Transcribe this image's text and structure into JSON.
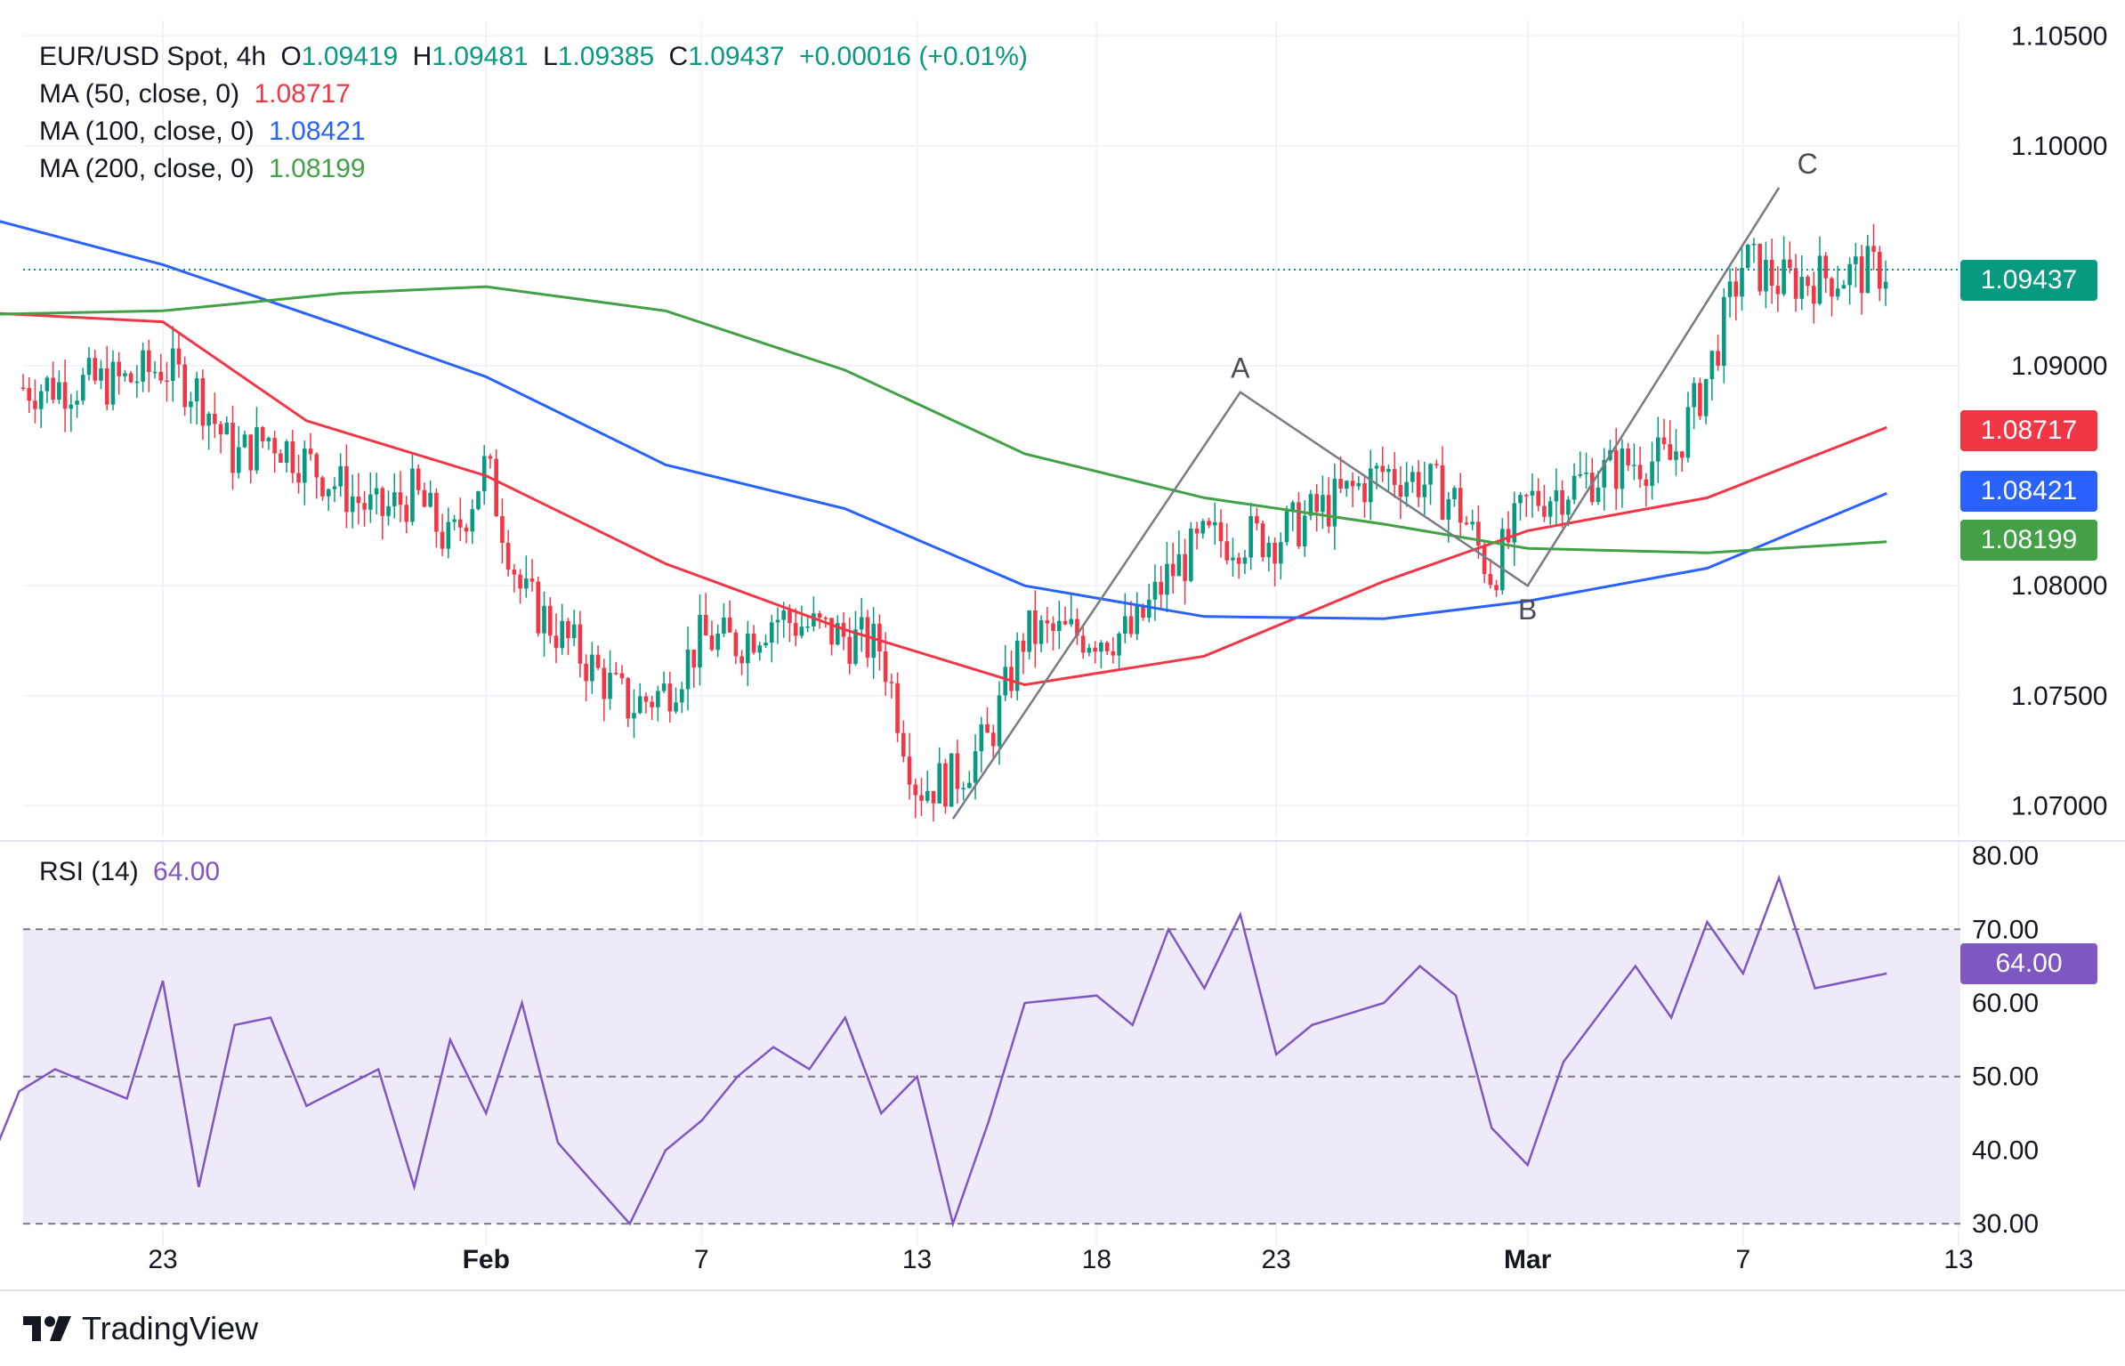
{
  "header": {
    "symbol": "EUR/USD Spot, 4h",
    "o_label": "O",
    "o_value": "1.09419",
    "h_label": "H",
    "h_value": "1.09481",
    "l_label": "L",
    "l_value": "1.09385",
    "c_label": "C",
    "c_value": "1.09437",
    "change": "+0.00016 (+0.01%)",
    "ma50_label": "MA (50, close, 0)",
    "ma50_value": "1.08717",
    "ma100_label": "MA (100, close, 0)",
    "ma100_value": "1.08421",
    "ma200_label": "MA (200, close, 0)",
    "ma200_value": "1.08199"
  },
  "rsi_header": {
    "label": "RSI (14)",
    "value": "64.00"
  },
  "badges": {
    "price": "1.09437",
    "ma50": "1.08717",
    "ma100": "1.08421",
    "ma200": "1.08199",
    "rsi": "64.00"
  },
  "brand": {
    "name": "TradingView"
  },
  "colors": {
    "up": "#089981",
    "down": "#f23645",
    "ma50": "#f23645",
    "ma100": "#2962ff",
    "ma200": "#43a047",
    "rsi": "#7e57c2",
    "rsi_band": "#efeafa",
    "pattern": "#787b86"
  },
  "chart_data": [
    {
      "type": "candlestick",
      "title": "EUR/USD Spot, 4h",
      "y_axis": {
        "range": [
          1.0686,
          1.1057
        ],
        "ticks": [
          "1.10500",
          "1.10000",
          "1.09000",
          "1.08000",
          "1.07500",
          "1.07000"
        ],
        "position": "right"
      },
      "x_axis": {
        "ticks": [
          "23",
          "Feb",
          "7",
          "13",
          "18",
          "23",
          "Mar",
          "7",
          "13"
        ],
        "tick_dates": [
          "2024-01-23",
          "2024-02-01",
          "2024-02-07",
          "2024-02-13",
          "2024-02-18",
          "2024-02-23",
          "2024-03-01",
          "2024-03-07",
          "2024-03-13"
        ]
      },
      "grid": true,
      "last_price": 1.09437,
      "ohlc_close_path": [
        [
          "2024-01-17",
          1.0882
        ],
        [
          "2024-01-18",
          1.0872
        ],
        [
          "2024-01-19",
          1.089
        ],
        [
          "2024-01-22",
          1.0893
        ],
        [
          "2024-01-23",
          1.09
        ],
        [
          "2024-01-24",
          1.0888
        ],
        [
          "2024-01-25",
          1.0858
        ],
        [
          "2024-01-26",
          1.0868
        ],
        [
          "2024-01-29",
          1.0832
        ],
        [
          "2024-01-30",
          1.0842
        ],
        [
          "2024-01-31",
          1.0818
        ],
        [
          "2024-02-01",
          1.0855
        ],
        [
          "2024-02-02",
          1.0796
        ],
        [
          "2024-02-05",
          1.0745
        ],
        [
          "2024-02-06",
          1.0752
        ],
        [
          "2024-02-07",
          1.0776
        ],
        [
          "2024-02-08",
          1.0774
        ],
        [
          "2024-02-09",
          1.0786
        ],
        [
          "2024-02-12",
          1.0772
        ],
        [
          "2024-02-13",
          1.0708
        ],
        [
          "2024-02-14",
          1.0712
        ],
        [
          "2024-02-15",
          1.073
        ],
        [
          "2024-02-16",
          1.0778
        ],
        [
          "2024-02-19",
          1.0778
        ],
        [
          "2024-02-20",
          1.0805
        ],
        [
          "2024-02-21",
          1.082
        ],
        [
          "2024-02-22",
          1.0822
        ],
        [
          "2024-02-23",
          1.0822
        ],
        [
          "2024-02-26",
          1.0852
        ],
        [
          "2024-02-27",
          1.0848
        ],
        [
          "2024-02-28",
          1.0838
        ],
        [
          "2024-02-29",
          1.0805
        ],
        [
          "2024-03-01",
          1.0838
        ],
        [
          "2024-03-04",
          1.0857
        ],
        [
          "2024-03-05",
          1.0857
        ],
        [
          "2024-03-06",
          1.0895
        ],
        [
          "2024-03-07",
          1.0948
        ],
        [
          "2024-03-08",
          1.0938
        ],
        [
          "2024-03-11",
          1.0944
        ]
      ],
      "series": [
        {
          "name": "MA (50, close, 0)",
          "last": 1.08717,
          "points": [
            [
              "2024-01-17",
              1.0925
            ],
            [
              "2024-01-23",
              1.092
            ],
            [
              "2024-01-27",
              1.0875
            ],
            [
              "2024-02-01",
              1.085
            ],
            [
              "2024-02-06",
              1.081
            ],
            [
              "2024-02-11",
              1.078
            ],
            [
              "2024-02-16",
              1.0755
            ],
            [
              "2024-02-21",
              1.0768
            ],
            [
              "2024-02-26",
              1.0802
            ],
            [
              "2024-03-01",
              1.0825
            ],
            [
              "2024-03-06",
              1.084
            ],
            [
              "2024-03-11",
              1.0872
            ]
          ]
        },
        {
          "name": "MA (100, close, 0)",
          "last": 1.08421,
          "points": [
            [
              "2024-01-17",
              1.0972
            ],
            [
              "2024-01-23",
              1.0946
            ],
            [
              "2024-01-28",
              1.0918
            ],
            [
              "2024-02-01",
              1.0895
            ],
            [
              "2024-02-06",
              1.0855
            ],
            [
              "2024-02-11",
              1.0835
            ],
            [
              "2024-02-16",
              1.08
            ],
            [
              "2024-02-21",
              1.0786
            ],
            [
              "2024-02-26",
              1.0785
            ],
            [
              "2024-03-01",
              1.0793
            ],
            [
              "2024-03-06",
              1.0808
            ],
            [
              "2024-03-11",
              1.0842
            ]
          ]
        },
        {
          "name": "MA (200, close, 0)",
          "last": 1.08199,
          "points": [
            [
              "2024-01-17",
              1.0923
            ],
            [
              "2024-01-23",
              1.0925
            ],
            [
              "2024-01-28",
              1.0933
            ],
            [
              "2024-02-01",
              1.0936
            ],
            [
              "2024-02-06",
              1.0925
            ],
            [
              "2024-02-11",
              1.0898
            ],
            [
              "2024-02-16",
              1.086
            ],
            [
              "2024-02-21",
              1.084
            ],
            [
              "2024-02-26",
              1.0828
            ],
            [
              "2024-03-01",
              1.0817
            ],
            [
              "2024-03-06",
              1.0815
            ],
            [
              "2024-03-11",
              1.082
            ]
          ]
        }
      ],
      "pattern": {
        "points": [
          {
            "label": "",
            "date": "2024-02-14",
            "price": 1.0694
          },
          {
            "label": "A",
            "date": "2024-02-22",
            "price": 1.0888
          },
          {
            "label": "B",
            "date": "2024-03-01",
            "price": 1.08
          },
          {
            "label": "C",
            "date": "2024-03-08",
            "price": 1.0981
          }
        ]
      }
    },
    {
      "type": "line",
      "title": "RSI (14)",
      "y_axis": {
        "range": [
          27,
          82
        ],
        "ticks": [
          "80.00",
          "70.00",
          "60.00",
          "50.00",
          "40.00",
          "30.00"
        ]
      },
      "levels": [
        70,
        50,
        30
      ],
      "band": [
        30,
        70
      ],
      "series": [
        {
          "name": "RSI (14)",
          "last": 64.0,
          "points": [
            [
              "2024-01-17",
              45
            ],
            [
              "2024-01-18",
              36
            ],
            [
              "2024-01-19",
              48
            ],
            [
              "2024-01-20",
              51
            ],
            [
              "2024-01-22",
              47
            ],
            [
              "2024-01-23",
              63
            ],
            [
              "2024-01-24",
              35
            ],
            [
              "2024-01-25",
              57
            ],
            [
              "2024-01-26",
              58
            ],
            [
              "2024-01-27",
              46
            ],
            [
              "2024-01-29",
              51
            ],
            [
              "2024-01-30",
              35
            ],
            [
              "2024-01-31",
              55
            ],
            [
              "2024-02-01",
              45
            ],
            [
              "2024-02-02",
              60
            ],
            [
              "2024-02-03",
              41
            ],
            [
              "2024-02-05",
              30
            ],
            [
              "2024-02-06",
              40
            ],
            [
              "2024-02-07",
              44
            ],
            [
              "2024-02-08",
              50
            ],
            [
              "2024-02-09",
              54
            ],
            [
              "2024-02-10",
              51
            ],
            [
              "2024-02-11",
              58
            ],
            [
              "2024-02-12",
              45
            ],
            [
              "2024-02-13",
              50
            ],
            [
              "2024-02-14",
              30
            ],
            [
              "2024-02-15",
              44
            ],
            [
              "2024-02-16",
              60
            ],
            [
              "2024-02-18",
              61
            ],
            [
              "2024-02-19",
              57
            ],
            [
              "2024-02-20",
              70
            ],
            [
              "2024-02-21",
              62
            ],
            [
              "2024-02-22",
              72
            ],
            [
              "2024-02-23",
              53
            ],
            [
              "2024-02-24",
              57
            ],
            [
              "2024-02-26",
              60
            ],
            [
              "2024-02-27",
              65
            ],
            [
              "2024-02-28",
              61
            ],
            [
              "2024-02-29",
              43
            ],
            [
              "2024-03-01",
              38
            ],
            [
              "2024-03-02",
              52
            ],
            [
              "2024-03-04",
              65
            ],
            [
              "2024-03-05",
              58
            ],
            [
              "2024-03-06",
              71
            ],
            [
              "2024-03-07",
              64
            ],
            [
              "2024-03-08",
              77
            ],
            [
              "2024-03-09",
              62
            ],
            [
              "2024-03-11",
              64
            ]
          ]
        }
      ]
    }
  ]
}
